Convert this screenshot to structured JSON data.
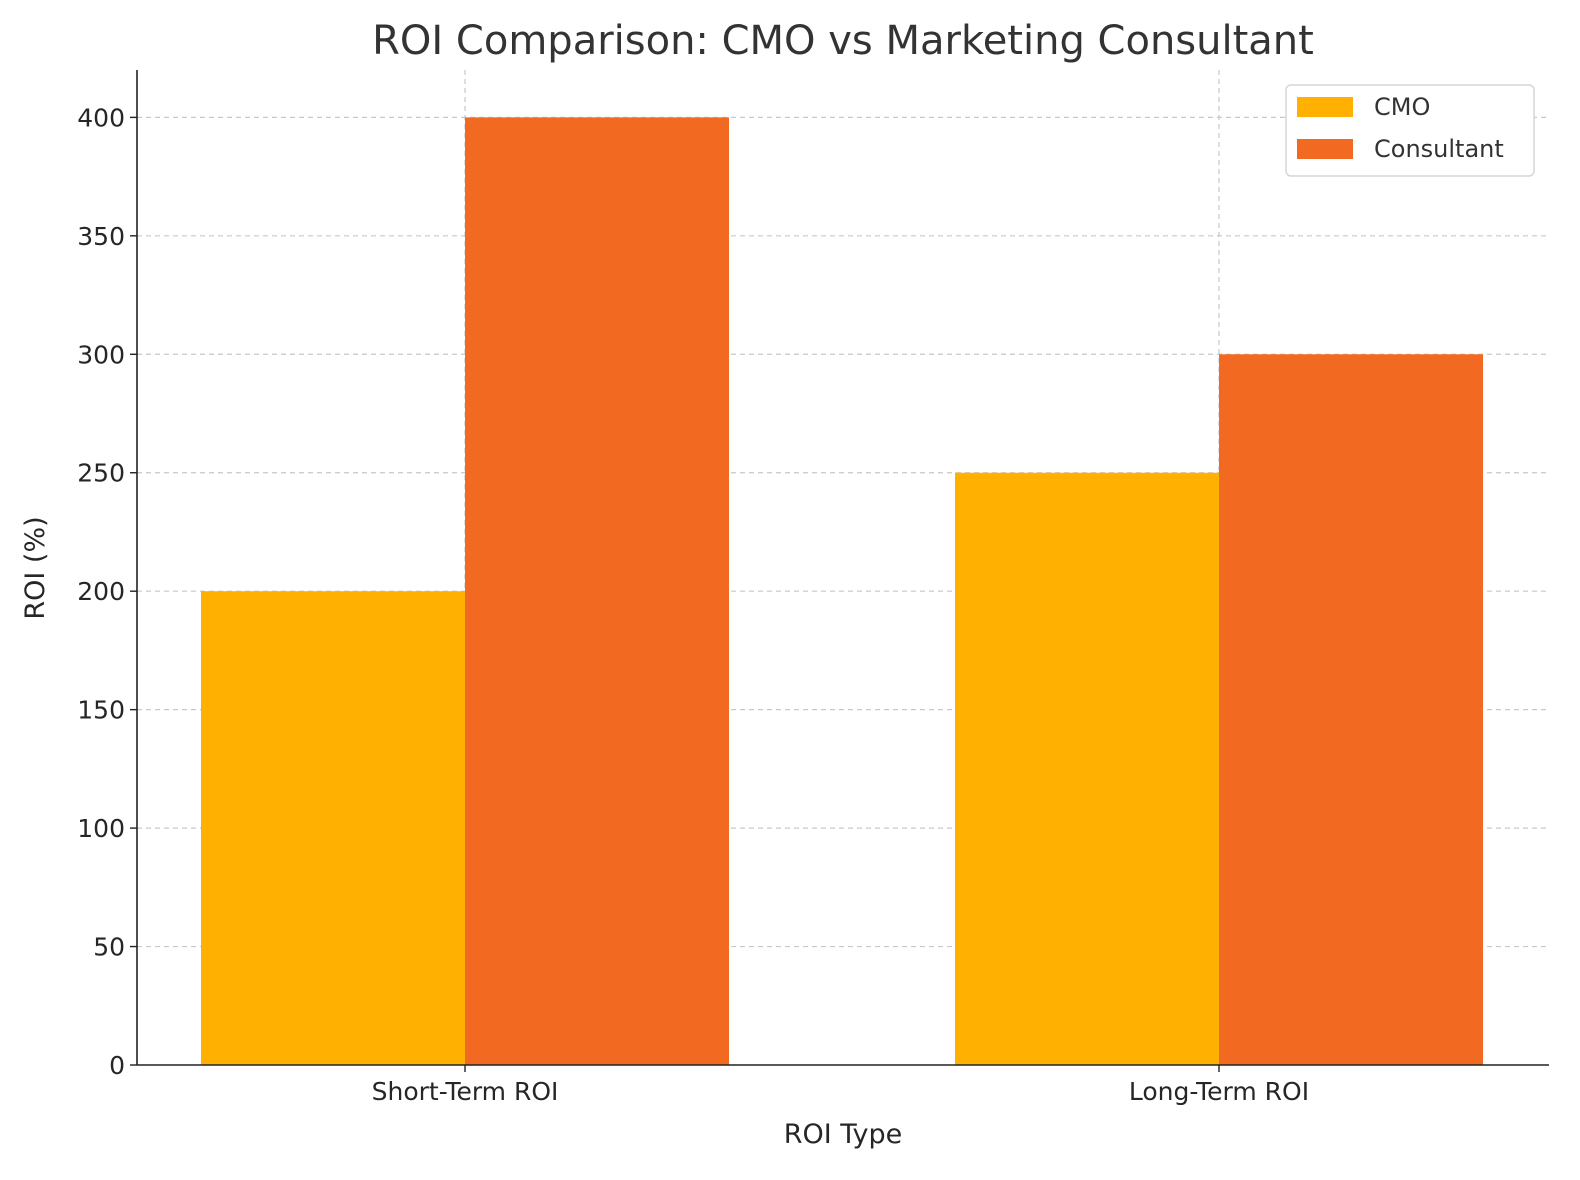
{
  "chart_data": {
    "type": "bar",
    "title": "ROI Comparison: CMO vs Marketing Consultant",
    "xlabel": "ROI Type",
    "ylabel": "ROI (%)",
    "categories": [
      "Short-Term ROI",
      "Long-Term ROI"
    ],
    "series": [
      {
        "name": "CMO",
        "values": [
          200,
          250
        ],
        "color": "#FFB000"
      },
      {
        "name": "Consultant",
        "values": [
          400,
          300
        ],
        "color": "#F26922"
      }
    ],
    "ylim": [
      0,
      420
    ],
    "yticks": [
      0,
      50,
      100,
      150,
      200,
      250,
      300,
      350,
      400
    ],
    "grid": true,
    "legend_position": "top-right"
  }
}
